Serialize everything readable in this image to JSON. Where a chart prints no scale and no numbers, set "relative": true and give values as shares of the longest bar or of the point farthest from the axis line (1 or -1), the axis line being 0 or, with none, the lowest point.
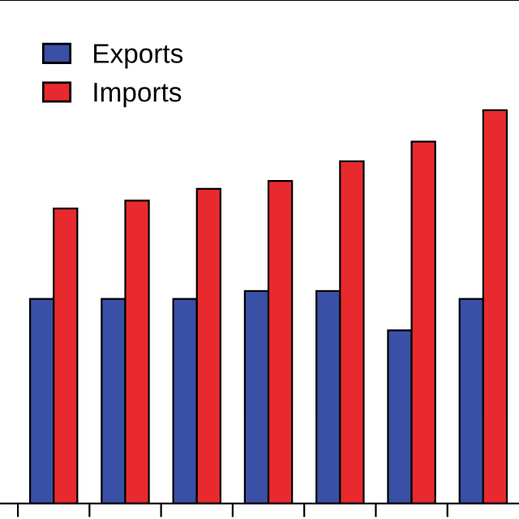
{
  "chart_data": {
    "type": "bar",
    "relative": true,
    "categories": [
      null,
      null,
      null,
      null,
      null,
      null,
      null
    ],
    "series": [
      {
        "name": "Exports",
        "color": "#3a4fa6",
        "values": [
          0.52,
          0.52,
          0.52,
          0.54,
          0.54,
          0.44,
          0.52
        ]
      },
      {
        "name": "Imports",
        "color": "#e82a2e",
        "values": [
          0.75,
          0.77,
          0.8,
          0.82,
          0.87,
          0.92,
          1.0
        ]
      }
    ],
    "legend": "top left",
    "grid": false
  }
}
